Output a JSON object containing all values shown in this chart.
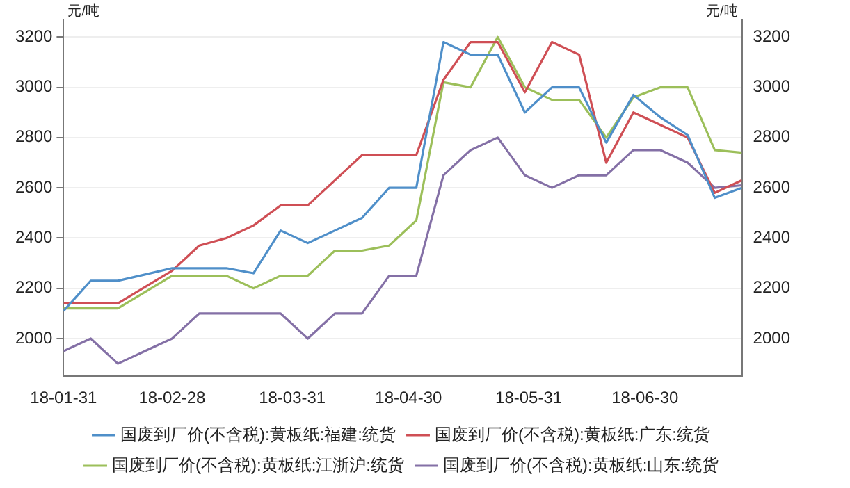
{
  "chart_data": {
    "type": "line",
    "ylabel": "元/吨",
    "y2label": "元/吨",
    "x": [
      "--01-31",
      "--02-07",
      "--02-14",
      "--02-21",
      "--02-28",
      "--03-07",
      "--03-14",
      "--03-21",
      "--03-28",
      "--04-04",
      "--04-11",
      "--04-18",
      "--04-25",
      "--05-02",
      "--05-09",
      "--05-16",
      "--05-23",
      "--05-30",
      "--06-06",
      "--06-13",
      "--06-20",
      "--06-27",
      "--07-04",
      "--07-11",
      "--07-18",
      "--07-25"
    ],
    "series": [
      {
        "name": "国废到厂价(不含税):黄板纸:福建:统货",
        "color": "#4f8fc9",
        "values": [
          2110,
          2230,
          2230,
          2255,
          2280,
          2280,
          2280,
          2260,
          2430,
          2380,
          2430,
          2480,
          2600,
          2600,
          3180,
          3130,
          3130,
          2900,
          3000,
          3000,
          2780,
          2970,
          2880,
          2810,
          2560,
          2600
        ]
      },
      {
        "name": "国废到厂价(不含税):黄板纸:广东:统货",
        "color": "#cf4f55",
        "values": [
          2140,
          2140,
          2140,
          2205,
          2270,
          2370,
          2400,
          2450,
          2530,
          2530,
          2630,
          2730,
          2730,
          2730,
          3030,
          3180,
          3180,
          2980,
          3180,
          3130,
          2700,
          2900,
          2850,
          2800,
          2580,
          2630
        ]
      },
      {
        "name": "国废到厂价(不含税):黄板纸:江浙沪:统货",
        "color": "#9cbf5a",
        "values": [
          2120,
          2120,
          2120,
          2185,
          2250,
          2250,
          2250,
          2200,
          2250,
          2250,
          2350,
          2350,
          2370,
          2470,
          3020,
          3000,
          3200,
          3000,
          2950,
          2950,
          2800,
          2960,
          3000,
          3000,
          2750,
          2740
        ]
      },
      {
        "name": "国废到厂价(不含税):黄板纸:山东:统货",
        "color": "#8470a6",
        "values": [
          1950,
          2000,
          1900,
          1950,
          2000,
          2100,
          2100,
          2100,
          2100,
          2000,
          2100,
          2100,
          2250,
          2250,
          2650,
          2750,
          2800,
          2650,
          2600,
          2650,
          2650,
          2750,
          2750,
          2700,
          2600,
          2610
        ]
      }
    ],
    "xlim": [
      "--01-31",
      "--07-25"
    ],
    "xticks": [
      {
        "value": "--01-31",
        "label": "18-01-31"
      },
      {
        "value": "--02-28",
        "label": "18-02-28"
      },
      {
        "value": "--03-31",
        "label": "18-03-31"
      },
      {
        "value": "--04-30",
        "label": "18-04-30"
      },
      {
        "value": "--05-31",
        "label": "18-05-31"
      },
      {
        "value": "--06-30",
        "label": "18-06-30"
      }
    ],
    "ylim": [
      1850,
      3270
    ],
    "yticks": [
      2000,
      2200,
      2400,
      2600,
      2800,
      3000,
      3200
    ],
    "y2lim": [
      1850,
      3270
    ],
    "y2ticks": [
      2000,
      2200,
      2400,
      2600,
      2800,
      3000,
      3200
    ],
    "grid": "y",
    "legend": "bottom",
    "marker": "none",
    "line_style": "solid"
  }
}
